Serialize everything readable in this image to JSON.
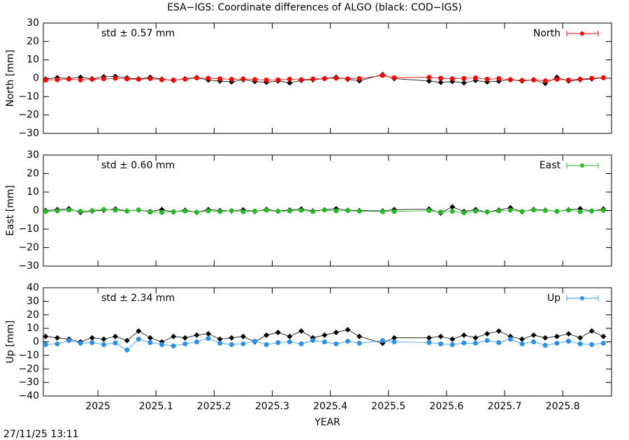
{
  "title": "ESA−IGS: Coordinate differences of ALGO (black: COD−IGS)",
  "footer": "27/11/25 13:11",
  "chart_data": [
    {
      "type": "line",
      "ylabel": "North [mm]",
      "annotation": "std ± 0.57 mm",
      "x": [
        2024.91,
        2024.93,
        2024.95,
        2024.97,
        2024.99,
        2025.01,
        2025.03,
        2025.05,
        2025.07,
        2025.09,
        2025.11,
        2025.13,
        2025.15,
        2025.17,
        2025.19,
        2025.21,
        2025.23,
        2025.25,
        2025.27,
        2025.29,
        2025.31,
        2025.33,
        2025.35,
        2025.37,
        2025.39,
        2025.41,
        2025.43,
        2025.45,
        2025.49,
        2025.51,
        2025.57,
        2025.59,
        2025.61,
        2025.63,
        2025.65,
        2025.67,
        2025.69,
        2025.71,
        2025.73,
        2025.75,
        2025.77,
        2025.79,
        2025.81,
        2025.83,
        2025.85,
        2025.87
      ],
      "series": [
        {
          "color": "#000000",
          "values": [
            -0.5,
            0.3,
            -0.2,
            0.5,
            -0.3,
            0.8,
            1,
            0.2,
            -0.4,
            0.5,
            -0.5,
            -1.2,
            -0.3,
            0.4,
            -1,
            -1.5,
            -2,
            -0.8,
            -1.8,
            -2.2,
            -1.5,
            -2.5,
            -1.2,
            -0.8,
            -0.2,
            0.5,
            -0.6,
            -1.4,
            2,
            -0.2,
            -1.5,
            -2.3,
            -1.8,
            -2.5,
            -1.2,
            -2,
            -1.6,
            -0.8,
            -1.5,
            -0.9,
            -2.8,
            0.5,
            -1.5,
            -0.8,
            -0.4,
            0.3
          ]
        },
        {
          "name": "North",
          "color": "#ff0000",
          "values": [
            -1,
            -0.8,
            -0.5,
            -0.9,
            -0.6,
            -0.3,
            0,
            -0.4,
            -0.6,
            -0.2,
            -0.8,
            -1,
            -0.5,
            0.2,
            0,
            -0.3,
            -0.6,
            -0.4,
            -0.7,
            -1,
            -0.9,
            -0.5,
            -0.8,
            -0.4,
            -0.2,
            0,
            -0.3,
            -0.2,
            1.5,
            0.3,
            0.5,
            0,
            -0.3,
            -0.1,
            0.2,
            -0.5,
            -0.2,
            -0.8,
            -1.2,
            -0.9,
            -1.4,
            -0.6,
            -1,
            -0.5,
            0,
            0.3
          ]
        }
      ],
      "xlim": [
        2024.906,
        2025.884
      ],
      "xticks": [
        2025,
        2025.1,
        2025.2,
        2025.3,
        2025.4,
        2025.5,
        2025.6,
        2025.7,
        2025.8
      ],
      "ylim": [
        -30,
        30
      ],
      "yticks": [
        {
          "value": -30,
          "label": "−30"
        },
        {
          "value": -20,
          "label": "−20"
        },
        {
          "value": -10,
          "label": "−10"
        },
        0,
        10,
        20,
        30
      ],
      "legend": "upper right"
    },
    {
      "type": "line",
      "ylabel": "East [mm]",
      "annotation": "std ± 0.60 mm",
      "x": [
        2024.91,
        2024.93,
        2024.95,
        2024.97,
        2024.99,
        2025.01,
        2025.03,
        2025.05,
        2025.07,
        2025.09,
        2025.11,
        2025.13,
        2025.15,
        2025.17,
        2025.19,
        2025.21,
        2025.23,
        2025.25,
        2025.27,
        2025.29,
        2025.31,
        2025.33,
        2025.35,
        2025.37,
        2025.39,
        2025.41,
        2025.43,
        2025.45,
        2025.49,
        2025.51,
        2025.57,
        2025.59,
        2025.61,
        2025.63,
        2025.65,
        2025.67,
        2025.69,
        2025.71,
        2025.73,
        2025.75,
        2025.77,
        2025.79,
        2025.81,
        2025.83,
        2025.85,
        2025.87
      ],
      "series": [
        {
          "color": "#000000",
          "values": [
            0,
            0.5,
            1,
            -1,
            -0.3,
            0.2,
            0.8,
            -0.2,
            0.3,
            -0.5,
            0.5,
            -0.8,
            0.2,
            -1,
            0.5,
            0,
            -0.2,
            0.4,
            -0.5,
            0.6,
            -0.3,
            0.3,
            0.8,
            -0.2,
            0.4,
            1,
            0.2,
            0,
            -0.2,
            0.5,
            0.8,
            -1.3,
            2,
            -0.5,
            0.5,
            -0.8,
            0.3,
            1.5,
            -0.6,
            0.6,
            0.2,
            -0.5,
            0.4,
            1,
            -0.3,
            0.8
          ]
        },
        {
          "name": "East",
          "color": "#22bb22",
          "values": [
            -0.5,
            -0.2,
            0.3,
            -0.4,
            0,
            0.6,
            0.2,
            -0.3,
            0.4,
            -0.8,
            -1,
            -0.6,
            -0.3,
            -0.9,
            -0.2,
            -0.5,
            -0.1,
            -0.6,
            -0.3,
            0.2,
            -0.4,
            -0.2,
            0.1,
            -0.5,
            0.3,
            -0.2,
            0,
            -0.3,
            -0.6,
            -0.5,
            0,
            -0.8,
            -0.4,
            -1.2,
            -0.3,
            -0.7,
            -0.2,
            0.2,
            -0.5,
            0.3,
            0,
            -0.4,
            0.2,
            -0.6,
            -0.2,
            0.1
          ]
        }
      ],
      "xlim": [
        2024.906,
        2025.884
      ],
      "xticks": [
        2025,
        2025.1,
        2025.2,
        2025.3,
        2025.4,
        2025.5,
        2025.6,
        2025.7,
        2025.8
      ],
      "ylim": [
        -30,
        30
      ],
      "yticks": [
        {
          "value": -30,
          "label": "−30"
        },
        {
          "value": -20,
          "label": "−20"
        },
        {
          "value": -10,
          "label": "−10"
        },
        0,
        10,
        20,
        30
      ],
      "legend": "upper right"
    },
    {
      "type": "line",
      "ylabel": "Up [mm]",
      "annotation": "std ± 2.34 mm",
      "xlabel": "YEAR",
      "x": [
        2024.91,
        2024.93,
        2024.95,
        2024.97,
        2024.99,
        2025.01,
        2025.03,
        2025.05,
        2025.07,
        2025.09,
        2025.11,
        2025.13,
        2025.15,
        2025.17,
        2025.19,
        2025.21,
        2025.23,
        2025.25,
        2025.27,
        2025.29,
        2025.31,
        2025.33,
        2025.35,
        2025.37,
        2025.39,
        2025.41,
        2025.43,
        2025.45,
        2025.49,
        2025.51,
        2025.57,
        2025.59,
        2025.61,
        2025.63,
        2025.65,
        2025.67,
        2025.69,
        2025.71,
        2025.73,
        2025.75,
        2025.77,
        2025.79,
        2025.81,
        2025.83,
        2025.85,
        2025.87
      ],
      "series": [
        {
          "color": "#000000",
          "values": [
            4,
            3,
            2,
            0,
            3,
            2,
            4,
            1,
            8,
            3,
            0,
            4,
            3,
            5,
            6,
            2,
            3,
            4,
            0,
            5,
            7,
            4,
            8,
            3,
            5,
            7,
            9,
            4,
            -1,
            3,
            3,
            4,
            2,
            5,
            3,
            6,
            8,
            4,
            2,
            5,
            3,
            4,
            6,
            3,
            8,
            4
          ]
        },
        {
          "name": "Up",
          "color": "#2890ee",
          "values": [
            -2,
            -1.5,
            1,
            -1,
            -0.5,
            -2,
            -0.8,
            -6,
            2,
            -0.5,
            -2,
            -3,
            -1.5,
            0,
            2.5,
            -1,
            -2,
            -1.5,
            0.5,
            -2,
            -0.5,
            0,
            -1.5,
            1,
            0,
            -1.5,
            0.5,
            -1,
            1,
            0,
            -0.5,
            -1.5,
            -2,
            -0.8,
            -1,
            1,
            -0.5,
            2,
            -1.5,
            0,
            -2.5,
            -1,
            0.5,
            -1.5,
            -2,
            -1
          ]
        }
      ],
      "xlim": [
        2024.906,
        2025.884
      ],
      "xticks": [
        2025,
        2025.1,
        2025.2,
        2025.3,
        2025.4,
        2025.5,
        2025.6,
        2025.7,
        2025.8
      ],
      "ylim": [
        -40,
        40
      ],
      "yticks": [
        {
          "value": -40,
          "label": "−40"
        },
        {
          "value": -30,
          "label": "−30"
        },
        {
          "value": -20,
          "label": "−20"
        },
        {
          "value": -10,
          "label": "−10"
        },
        0,
        10,
        20,
        30,
        40
      ],
      "legend": "upper right"
    }
  ]
}
